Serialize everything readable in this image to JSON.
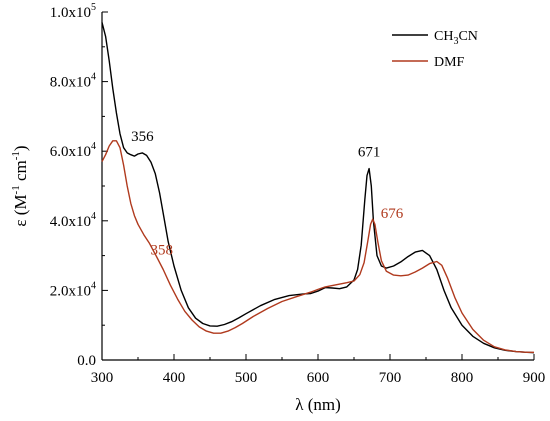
{
  "chart_data": {
    "type": "line",
    "xlabel": "λ (nm)",
    "ylabel_base": "ε (M",
    "ylabel_exp1": "-1",
    "ylabel_mid": "cm",
    "ylabel_exp2": "-1",
    "ylabel_end": ")",
    "xlim": [
      300,
      900
    ],
    "ylim": [
      0,
      100000
    ],
    "x_ticks": [
      300,
      400,
      500,
      600,
      700,
      800,
      900
    ],
    "x_tick_labels": [
      "300",
      "400",
      "500",
      "600",
      "700",
      "800",
      "900"
    ],
    "y_ticks": [
      0,
      20000,
      40000,
      60000,
      80000,
      100000
    ],
    "y_tick_labels": [
      {
        "base": "0.0",
        "exp": ""
      },
      {
        "base": "2.0x10",
        "exp": "4"
      },
      {
        "base": "4.0x10",
        "exp": "4"
      },
      {
        "base": "6.0x10",
        "exp": "4"
      },
      {
        "base": "8.0x10",
        "exp": "4"
      },
      {
        "base": "1.0x10",
        "exp": "5"
      }
    ],
    "legend_position": "top-right",
    "series": [
      {
        "name": "CH3CN",
        "legend_parts": {
          "pre": "CH",
          "sub": "3",
          "post": "CN"
        },
        "color": "#000000",
        "points": [
          [
            300,
            97000
          ],
          [
            305,
            93000
          ],
          [
            310,
            86000
          ],
          [
            315,
            78000
          ],
          [
            320,
            71000
          ],
          [
            325,
            65000
          ],
          [
            330,
            61000
          ],
          [
            335,
            59500
          ],
          [
            340,
            59000
          ],
          [
            345,
            58600
          ],
          [
            350,
            59200
          ],
          [
            356,
            59500
          ],
          [
            362,
            58800
          ],
          [
            368,
            56800
          ],
          [
            374,
            53500
          ],
          [
            380,
            48000
          ],
          [
            386,
            41000
          ],
          [
            392,
            34000
          ],
          [
            400,
            27000
          ],
          [
            410,
            20000
          ],
          [
            420,
            15000
          ],
          [
            430,
            12000
          ],
          [
            440,
            10500
          ],
          [
            450,
            9800
          ],
          [
            460,
            9700
          ],
          [
            470,
            10200
          ],
          [
            480,
            11000
          ],
          [
            490,
            12100
          ],
          [
            500,
            13300
          ],
          [
            520,
            15600
          ],
          [
            540,
            17400
          ],
          [
            560,
            18500
          ],
          [
            580,
            19000
          ],
          [
            590,
            19100
          ],
          [
            600,
            19800
          ],
          [
            610,
            20800
          ],
          [
            620,
            20700
          ],
          [
            630,
            20500
          ],
          [
            640,
            21000
          ],
          [
            650,
            23000
          ],
          [
            655,
            26000
          ],
          [
            660,
            33000
          ],
          [
            665,
            46000
          ],
          [
            668,
            53000
          ],
          [
            671,
            55000
          ],
          [
            674,
            50000
          ],
          [
            677,
            40000
          ],
          [
            682,
            30000
          ],
          [
            688,
            27000
          ],
          [
            695,
            26400
          ],
          [
            705,
            27000
          ],
          [
            715,
            28200
          ],
          [
            725,
            29700
          ],
          [
            735,
            31000
          ],
          [
            745,
            31500
          ],
          [
            755,
            30000
          ],
          [
            765,
            26000
          ],
          [
            775,
            20000
          ],
          [
            785,
            15000
          ],
          [
            800,
            10000
          ],
          [
            815,
            6800
          ],
          [
            830,
            4800
          ],
          [
            845,
            3500
          ],
          [
            860,
            2800
          ],
          [
            875,
            2400
          ],
          [
            890,
            2200
          ],
          [
            900,
            2100
          ]
        ]
      },
      {
        "name": "DMF",
        "legend_parts": {
          "pre": "DMF",
          "sub": "",
          "post": ""
        },
        "color": "#b03a1e",
        "points": [
          [
            300,
            57000
          ],
          [
            305,
            59000
          ],
          [
            310,
            61500
          ],
          [
            315,
            63000
          ],
          [
            320,
            63000
          ],
          [
            325,
            61000
          ],
          [
            330,
            56000
          ],
          [
            335,
            50000
          ],
          [
            340,
            45000
          ],
          [
            345,
            41500
          ],
          [
            350,
            39000
          ],
          [
            358,
            36000
          ],
          [
            366,
            33500
          ],
          [
            375,
            30000
          ],
          [
            385,
            26000
          ],
          [
            395,
            21500
          ],
          [
            405,
            17500
          ],
          [
            415,
            14000
          ],
          [
            425,
            11500
          ],
          [
            435,
            9500
          ],
          [
            445,
            8300
          ],
          [
            455,
            7700
          ],
          [
            465,
            7700
          ],
          [
            475,
            8300
          ],
          [
            485,
            9300
          ],
          [
            495,
            10500
          ],
          [
            510,
            12500
          ],
          [
            530,
            14800
          ],
          [
            550,
            16800
          ],
          [
            570,
            18200
          ],
          [
            590,
            19500
          ],
          [
            600,
            20300
          ],
          [
            610,
            21000
          ],
          [
            625,
            21600
          ],
          [
            640,
            22200
          ],
          [
            650,
            22700
          ],
          [
            658,
            24500
          ],
          [
            664,
            28000
          ],
          [
            669,
            34000
          ],
          [
            673,
            39000
          ],
          [
            676,
            40500
          ],
          [
            679,
            39000
          ],
          [
            683,
            34000
          ],
          [
            688,
            28500
          ],
          [
            695,
            25500
          ],
          [
            705,
            24400
          ],
          [
            715,
            24200
          ],
          [
            725,
            24400
          ],
          [
            735,
            25300
          ],
          [
            745,
            26400
          ],
          [
            755,
            27700
          ],
          [
            765,
            28300
          ],
          [
            772,
            27200
          ],
          [
            780,
            23500
          ],
          [
            790,
            18000
          ],
          [
            800,
            13500
          ],
          [
            815,
            8800
          ],
          [
            830,
            5700
          ],
          [
            845,
            3800
          ],
          [
            860,
            2900
          ],
          [
            875,
            2400
          ],
          [
            890,
            2200
          ],
          [
            900,
            2200
          ]
        ]
      }
    ],
    "annotations": [
      {
        "text": "356",
        "series": 0,
        "at_x": 356,
        "at_y": 59500,
        "color": "#000000",
        "anchor": "above"
      },
      {
        "text": "358",
        "series": 1,
        "at_x": 358,
        "at_y": 36000,
        "color": "#b03a1e",
        "anchor": "below-right"
      },
      {
        "text": "671",
        "series": 0,
        "at_x": 671,
        "at_y": 55000,
        "color": "#000000",
        "anchor": "above"
      },
      {
        "text": "676",
        "series": 1,
        "at_x": 676,
        "at_y": 40500,
        "color": "#b03a1e",
        "anchor": "right"
      }
    ]
  }
}
